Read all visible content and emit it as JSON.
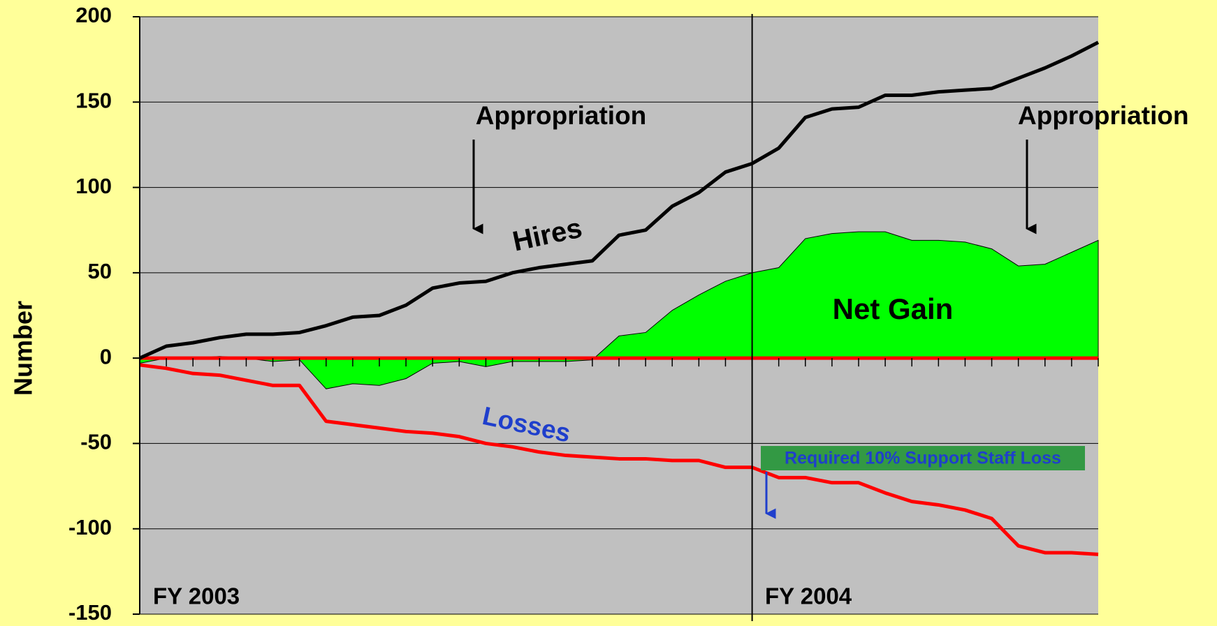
{
  "chart_data": {
    "type": "line",
    "y_label": "Number",
    "categories": [
      null,
      null,
      null,
      null,
      null,
      null,
      null,
      null,
      null,
      null,
      null,
      null,
      null,
      null,
      null,
      null,
      null,
      null,
      null,
      null,
      null,
      null,
      null,
      null,
      null,
      null,
      null,
      null,
      null,
      null,
      null,
      null,
      null,
      null,
      null,
      null,
      null
    ],
    "series": [
      {
        "name": "Hires",
        "color": "#000000",
        "kind": "line",
        "values": [
          0,
          7,
          9,
          12,
          14,
          14,
          15,
          19,
          24,
          25,
          31,
          41,
          44,
          45,
          50,
          53,
          55,
          57,
          72,
          75,
          89,
          97,
          109,
          114,
          123,
          141,
          146,
          147,
          154,
          154,
          156,
          157,
          158,
          164,
          170,
          177,
          185
        ]
      },
      {
        "name": "Losses",
        "color": "#ff0000",
        "kind": "line",
        "values": [
          -4,
          -6,
          -9,
          -10,
          -13,
          -16,
          -16,
          -37,
          -39,
          -41,
          -43,
          -44,
          -46,
          -50,
          -52,
          -55,
          -57,
          -58,
          -59,
          -59,
          -60,
          -60,
          -64,
          -64,
          -70,
          -70,
          -73,
          -73,
          -79,
          -84,
          -86,
          -89,
          -94,
          -110,
          -114,
          -114,
          -115
        ]
      },
      {
        "name": "Net Gain",
        "color": "#00ff00",
        "kind": "area",
        "values": [
          -3,
          0,
          0,
          1,
          0,
          -2,
          -1,
          -18,
          -15,
          -16,
          -12,
          -3,
          -2,
          -5,
          -2,
          -2,
          -2,
          -1,
          13,
          15,
          28,
          37,
          45,
          50,
          53,
          70,
          73,
          74,
          74,
          69,
          69,
          68,
          64,
          54,
          55,
          62,
          69
        ]
      }
    ],
    "ylim": [
      -150,
      200
    ],
    "yticks": [
      -150,
      -100,
      -50,
      0,
      50,
      100,
      150,
      200
    ],
    "grid": true,
    "plot_color": "#c0c0c0",
    "annotations": {
      "appropriation_1": "Appropriation",
      "appropriation_2": "Appropriation",
      "required_loss": "Required 10% Support Staff Loss",
      "fy_2003": "FY 2003",
      "fy_2004": "FY 2004"
    }
  }
}
